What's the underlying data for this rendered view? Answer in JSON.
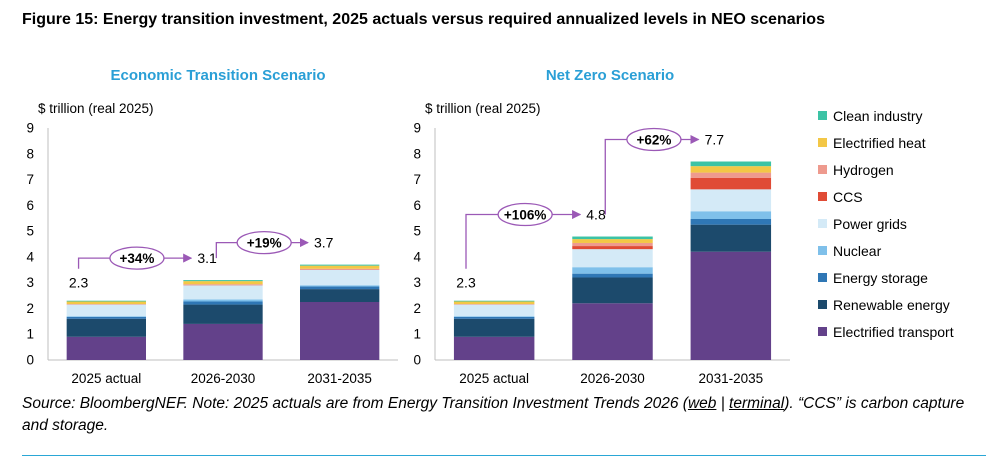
{
  "figure_title": "Figure 15: Energy transition investment, 2025 actuals versus required annualized levels in NEO scenarios",
  "source": {
    "prefix": "Source: BloombergNEF. Note: 2025 actuals are from Energy Transition Investment Trends 2026 (",
    "link_web": "web",
    "sep": " | ",
    "link_terminal": "terminal",
    "suffix": "). “CCS” is carbon capture and storage."
  },
  "legend": [
    {
      "name": "Clean industry",
      "color": "#3cc3a5"
    },
    {
      "name": "Electrified heat",
      "color": "#f3c746"
    },
    {
      "name": "Hydrogen",
      "color": "#ee9a8e"
    },
    {
      "name": "CCS",
      "color": "#e04b35"
    },
    {
      "name": "Power grids",
      "color": "#d4eaf7"
    },
    {
      "name": "Nuclear",
      "color": "#7fc0ea"
    },
    {
      "name": "Energy storage",
      "color": "#2f77b5"
    },
    {
      "name": "Renewable energy",
      "color": "#1c4a6c"
    },
    {
      "name": "Electrified transport",
      "color": "#63418a"
    }
  ],
  "chart_data": [
    {
      "type": "bar",
      "stacked": true,
      "title": "Economic Transition Scenario",
      "ylabel": "$ trillion (real 2025)",
      "ylim": [
        0,
        9
      ],
      "yticks": [
        0,
        1,
        2,
        3,
        4,
        5,
        6,
        7,
        8,
        9
      ],
      "categories": [
        "2025 actual",
        "2026-2030",
        "2031-2035"
      ],
      "totals": [
        "2.3",
        "3.1",
        "3.7"
      ],
      "growth_labels": [
        "+34%",
        "+19%"
      ],
      "series": [
        {
          "name": "Electrified transport",
          "values": [
            0.9,
            1.4,
            2.25
          ]
        },
        {
          "name": "Renewable energy",
          "values": [
            0.7,
            0.75,
            0.5
          ]
        },
        {
          "name": "Energy storage",
          "values": [
            0.07,
            0.12,
            0.1
          ]
        },
        {
          "name": "Nuclear",
          "values": [
            0.03,
            0.08,
            0.05
          ]
        },
        {
          "name": "Power grids",
          "values": [
            0.45,
            0.55,
            0.6
          ]
        },
        {
          "name": "CCS",
          "values": [
            0.01,
            0.02,
            0.02
          ]
        },
        {
          "name": "Hydrogen",
          "values": [
            0.01,
            0.02,
            0.02
          ]
        },
        {
          "name": "Electrified heat",
          "values": [
            0.1,
            0.12,
            0.12
          ]
        },
        {
          "name": "Clean industry",
          "values": [
            0.03,
            0.04,
            0.04
          ]
        }
      ]
    },
    {
      "type": "bar",
      "stacked": true,
      "title": "Net Zero Scenario",
      "ylabel": "$ trillion (real 2025)",
      "ylim": [
        0,
        9
      ],
      "yticks": [
        0,
        1,
        2,
        3,
        4,
        5,
        6,
        7,
        8,
        9
      ],
      "categories": [
        "2025 actual",
        "2026-2030",
        "2031-2035"
      ],
      "totals": [
        "2.3",
        "4.8",
        "7.7"
      ],
      "growth_labels": [
        "+106%",
        "+62%"
      ],
      "series": [
        {
          "name": "Electrified transport",
          "values": [
            0.9,
            2.2,
            4.2
          ]
        },
        {
          "name": "Renewable energy",
          "values": [
            0.7,
            1.0,
            1.05
          ]
        },
        {
          "name": "Energy storage",
          "values": [
            0.07,
            0.15,
            0.22
          ]
        },
        {
          "name": "Nuclear",
          "values": [
            0.03,
            0.25,
            0.3
          ]
        },
        {
          "name": "Power grids",
          "values": [
            0.45,
            0.7,
            0.85
          ]
        },
        {
          "name": "CCS",
          "values": [
            0.01,
            0.12,
            0.45
          ]
        },
        {
          "name": "Hydrogen",
          "values": [
            0.01,
            0.12,
            0.2
          ]
        },
        {
          "name": "Electrified heat",
          "values": [
            0.1,
            0.15,
            0.25
          ]
        },
        {
          "name": "Clean industry",
          "values": [
            0.03,
            0.1,
            0.18
          ]
        }
      ]
    }
  ]
}
